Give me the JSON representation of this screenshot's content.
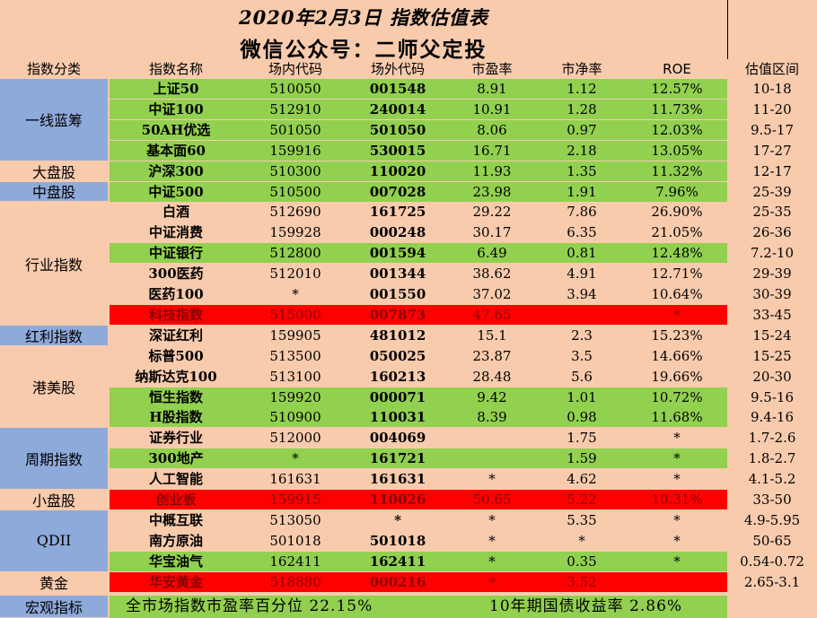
{
  "title_line1": "2020年2月3日 指数估值表",
  "title_line2": "微信公众号：二师父定投",
  "headers": {
    "category": "指数分类",
    "name": "指数名称",
    "onsite": "场内代码",
    "offsite": "场外代码",
    "pe": "市盈率",
    "pb": "市净率",
    "roe": "ROE",
    "range": "估值区间"
  },
  "categories": [
    {
      "label": "一线蓝筹",
      "start": 0,
      "span": 4,
      "color": "blue"
    },
    {
      "label": "大盘股",
      "start": 4,
      "span": 1,
      "color": "peach"
    },
    {
      "label": "中盘股",
      "start": 5,
      "span": 1,
      "color": "blue"
    },
    {
      "label": "行业指数",
      "start": 6,
      "span": 6,
      "color": "peach"
    },
    {
      "label": "红利指数",
      "start": 12,
      "span": 1,
      "color": "blue"
    },
    {
      "label": "港美股",
      "start": 13,
      "span": 4,
      "color": "peach"
    },
    {
      "label": "周期指数",
      "start": 17,
      "span": 3,
      "color": "blue"
    },
    {
      "label": "小盘股",
      "start": 20,
      "span": 1,
      "color": "peach"
    },
    {
      "label": "QDII",
      "start": 21,
      "span": 3,
      "color": "blue"
    },
    {
      "label": "黄金",
      "start": 24,
      "span": 1,
      "color": "peach"
    }
  ],
  "rows": [
    {
      "name": "上证50",
      "onsite": "510050",
      "offsite": "001548",
      "pe": "8.91",
      "pb": "1.12",
      "roe": "12.57%",
      "range": "10-18",
      "bg": "green"
    },
    {
      "name": "中证100",
      "onsite": "512910",
      "offsite": "240014",
      "pe": "10.91",
      "pb": "1.28",
      "roe": "11.73%",
      "range": "11-20",
      "bg": "green"
    },
    {
      "name": "50AH优选",
      "onsite": "501050",
      "offsite": "501050",
      "pe": "8.06",
      "pb": "0.97",
      "roe": "12.03%",
      "range": "9.5-17",
      "bg": "green"
    },
    {
      "name": "基本面60",
      "onsite": "159916",
      "offsite": "530015",
      "pe": "16.71",
      "pb": "2.18",
      "roe": "13.05%",
      "range": "17-27",
      "bg": "green"
    },
    {
      "name": "沪深300",
      "onsite": "510300",
      "offsite": "110020",
      "pe": "11.93",
      "pb": "1.35",
      "roe": "11.32%",
      "range": "12-17",
      "bg": "green"
    },
    {
      "name": "中证500",
      "onsite": "510500",
      "offsite": "007028",
      "pe": "23.98",
      "pb": "1.91",
      "roe": "7.96%",
      "range": "25-39",
      "bg": "green"
    },
    {
      "name": "白酒",
      "onsite": "512690",
      "offsite": "161725",
      "pe": "29.22",
      "pb": "7.86",
      "roe": "26.90%",
      "range": "25-35",
      "bg": "none"
    },
    {
      "name": "中证消费",
      "onsite": "159928",
      "offsite": "000248",
      "pe": "30.17",
      "pb": "6.35",
      "roe": "21.05%",
      "range": "26-36",
      "bg": "none"
    },
    {
      "name": "中证银行",
      "onsite": "512800",
      "offsite": "001594",
      "pe": "6.49",
      "pb": "0.81",
      "roe": "12.48%",
      "range": "7.2-10",
      "bg": "green"
    },
    {
      "name": "300医药",
      "onsite": "512010",
      "offsite": "001344",
      "pe": "38.62",
      "pb": "4.91",
      "roe": "12.71%",
      "range": "29-39",
      "bg": "none"
    },
    {
      "name": "医药100",
      "onsite": "*",
      "offsite": "001550",
      "pe": "37.02",
      "pb": "3.94",
      "roe": "10.64%",
      "range": "30-39",
      "bg": "none"
    },
    {
      "name": "科技指数",
      "onsite": "515000",
      "offsite": "007873",
      "pe": "47.65",
      "pb": "",
      "roe": "*",
      "range": "33-45",
      "bg": "red"
    },
    {
      "name": "深证红利",
      "onsite": "159905",
      "offsite": "481012",
      "pe": "15.1",
      "pb": "2.3",
      "roe": "15.23%",
      "range": "15-24",
      "bg": "none"
    },
    {
      "name": "标普500",
      "onsite": "513500",
      "offsite": "050025",
      "pe": "23.87",
      "pb": "3.5",
      "roe": "14.66%",
      "range": "15-25",
      "bg": "none"
    },
    {
      "name": "纳斯达克100",
      "onsite": "513100",
      "offsite": "160213",
      "pe": "28.48",
      "pb": "5.6",
      "roe": "19.66%",
      "range": "20-30",
      "bg": "none"
    },
    {
      "name": "恒生指数",
      "onsite": "159920",
      "offsite": "000071",
      "pe": "9.42",
      "pb": "1.01",
      "roe": "10.72%",
      "range": "9.5-16",
      "bg": "green"
    },
    {
      "name": "H股指数",
      "onsite": "510900",
      "offsite": "110031",
      "pe": "8.39",
      "pb": "0.98",
      "roe": "11.68%",
      "range": "9.4-16",
      "bg": "green"
    },
    {
      "name": "证券行业",
      "onsite": "512000",
      "offsite": "004069",
      "pe": "",
      "pb": "1.75",
      "roe": "*",
      "range": "1.7-2.6",
      "bg": "none"
    },
    {
      "name": "300地产",
      "onsite": "*",
      "offsite": "161721",
      "pe": "",
      "pb": "1.59",
      "roe": "*",
      "range": "1.8-2.7",
      "bg": "green"
    },
    {
      "name": "人工智能",
      "onsite": "161631",
      "offsite": "161631",
      "pe": "*",
      "pb": "4.62",
      "roe": "*",
      "range": "4.1-5.2",
      "bg": "none"
    },
    {
      "name": "创业板",
      "onsite": "159915",
      "offsite": "110026",
      "pe": "50.65",
      "pb": "5.22",
      "roe": "10.31%",
      "range": "33-50",
      "bg": "red"
    },
    {
      "name": "中概互联",
      "onsite": "513050",
      "offsite": "*",
      "pe": "*",
      "pb": "5.35",
      "roe": "*",
      "range": "4.9-5.95",
      "bg": "none"
    },
    {
      "name": "南方原油",
      "onsite": "501018",
      "offsite": "501018",
      "pe": "*",
      "pb": "*",
      "roe": "*",
      "range": "50-65",
      "bg": "none"
    },
    {
      "name": "华宝油气",
      "onsite": "162411",
      "offsite": "162411",
      "pe": "*",
      "pb": "0.35",
      "roe": "*",
      "range": "0.54-0.72",
      "bg": "green"
    },
    {
      "name": "华安黄金",
      "onsite": "518880",
      "offsite": "000216",
      "pe": "*",
      "pb": "3.52",
      "roe": "",
      "range": "2.65-3.1",
      "bg": "red"
    }
  ],
  "footer": {
    "category": "宏观指标",
    "pe_percentile": "全市场指数市盈率百分位 22.15%",
    "bond_yield": "10年期国债收益率 2.86%"
  },
  "colors": {
    "background": "#f8cbad",
    "green": "#92d050",
    "red": "#ff0000",
    "category_blue": "#8eaadb"
  }
}
